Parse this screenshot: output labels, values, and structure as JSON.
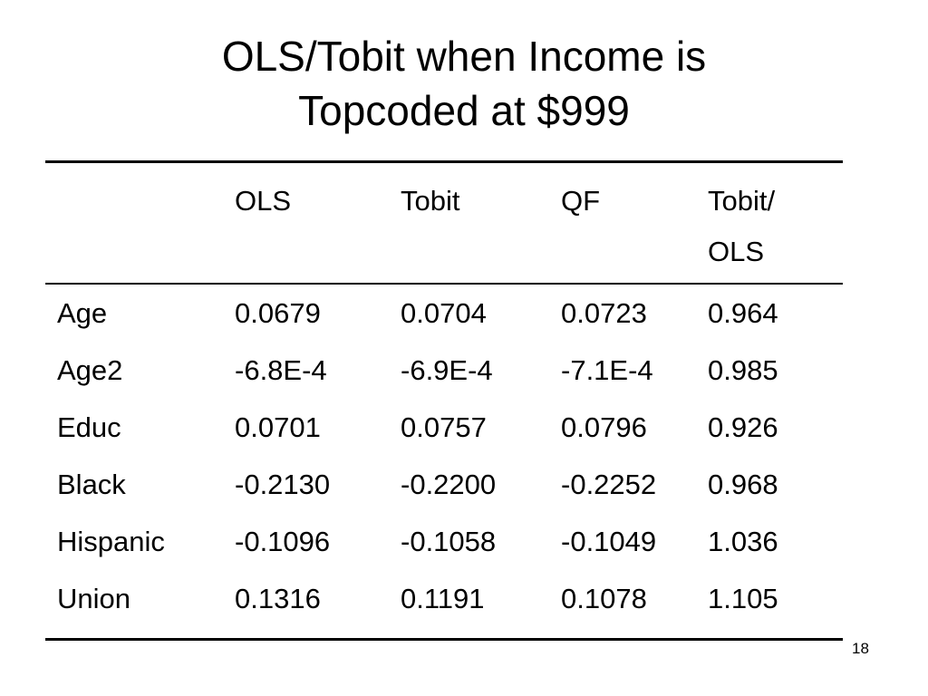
{
  "slide": {
    "title_line1": "OLS/Tobit when Income is",
    "title_line2": "Topcoded at $999",
    "page_number": "18"
  },
  "table": {
    "headers": {
      "variable": "",
      "ols": "OLS",
      "tobit": "Tobit",
      "qf": "QF",
      "ratio_line1": "Tobit/",
      "ratio_line2": "OLS"
    },
    "rows": [
      {
        "variable": "Age",
        "ols": "0.0679",
        "tobit": "0.0704",
        "qf": "0.0723",
        "ratio": "0.964"
      },
      {
        "variable": "Age2",
        "ols": "-6.8E-4",
        "tobit": "-6.9E-4",
        "qf": "-7.1E-4",
        "ratio": "0.985"
      },
      {
        "variable": "Educ",
        "ols": "0.0701",
        "tobit": "0.0757",
        "qf": "0.0796",
        "ratio": "0.926"
      },
      {
        "variable": "Black",
        "ols": "-0.2130",
        "tobit": "-0.2200",
        "qf": "-0.2252",
        "ratio": "0.968"
      },
      {
        "variable": "Hispanic",
        "ols": "-0.1096",
        "tobit": "-0.1058",
        "qf": "-0.1049",
        "ratio": "1.036"
      },
      {
        "variable": "Union",
        "ols": "0.1316",
        "tobit": "0.1191",
        "qf": "0.1078",
        "ratio": "1.105"
      }
    ]
  }
}
